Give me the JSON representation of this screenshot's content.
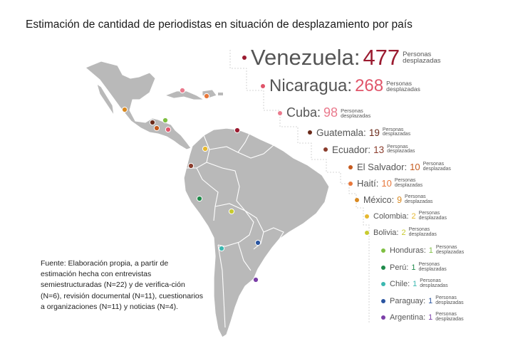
{
  "title": "Estimación de cantidad de periodistas en situación de desplazamiento por país",
  "unit_line1": "Personas",
  "unit_line2": "desplazadas",
  "note": "Fuente: Elaboración propia, a partir de estimación hecha con entrevistas semiestructuradas (N=22) y de verifica-ción (N=6), revisión documental (N=11), cuestionarios a organizaciones (N=11) y noticias (N=4).",
  "chart_data": {
    "type": "bar",
    "title": "Estimación de cantidad de periodistas en situación de desplazamiento por país",
    "unit": "Personas desplazadas",
    "categories": [
      "Venezuela",
      "Nicaragua",
      "Cuba",
      "Guatemala",
      "Ecuador",
      "El Salvador",
      "Haití",
      "México",
      "Colombia",
      "Bolivia",
      "Honduras",
      "Perú",
      "Chile",
      "Paraguay",
      "Argentina"
    ],
    "values": [
      477,
      268,
      98,
      19,
      13,
      10,
      10,
      9,
      2,
      2,
      1,
      1,
      1,
      1,
      1
    ],
    "colors": [
      "#9b1b30",
      "#e0556a",
      "#ea7a8d",
      "#6a2a1a",
      "#8a3c2c",
      "#c55a1e",
      "#e8773a",
      "#d98a22",
      "#e6b830",
      "#c8cb2f",
      "#7fbf42",
      "#1e8a4a",
      "#3bb8b0",
      "#2a55a0",
      "#7b3fa8"
    ]
  }
}
